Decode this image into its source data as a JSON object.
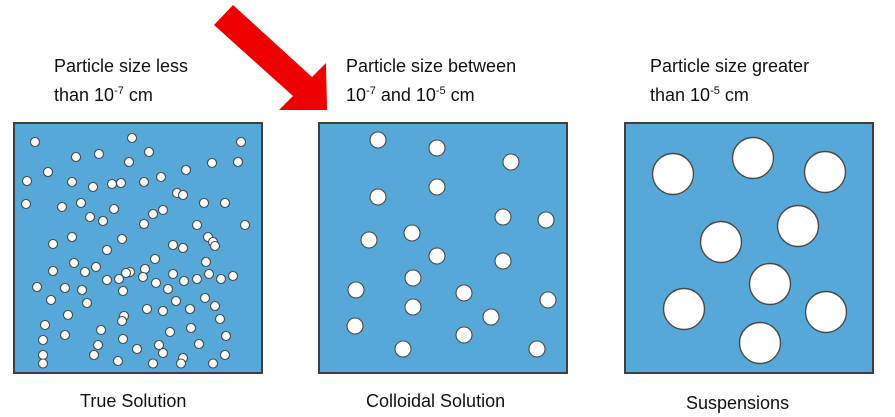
{
  "colors": {
    "box_fill": "#55a8d8",
    "box_border": "#3f3f3f",
    "particle_fill": "#ffffff",
    "particle_stroke": "#4a4a4a",
    "arrow": "#ee0000"
  },
  "panels": [
    {
      "label_line1": "Particle size less",
      "label_line2_prefix": "than 10",
      "label_line2_exp": "-7",
      "label_line2_suffix": " cm",
      "caption": "True Solution"
    },
    {
      "label_line1": "Particle size between",
      "label_line2_prefix": "10",
      "label_line2_exp": "-7",
      "label_line2_mid": " and 10",
      "label_line2_exp2": "-5",
      "label_line2_suffix": " cm",
      "caption": "Colloidal Solution"
    },
    {
      "label_line1": "Particle size greater",
      "label_line2_prefix": "than 10",
      "label_line2_exp": "-5",
      "label_line2_suffix": " cm",
      "caption": "Suspensions"
    }
  ]
}
